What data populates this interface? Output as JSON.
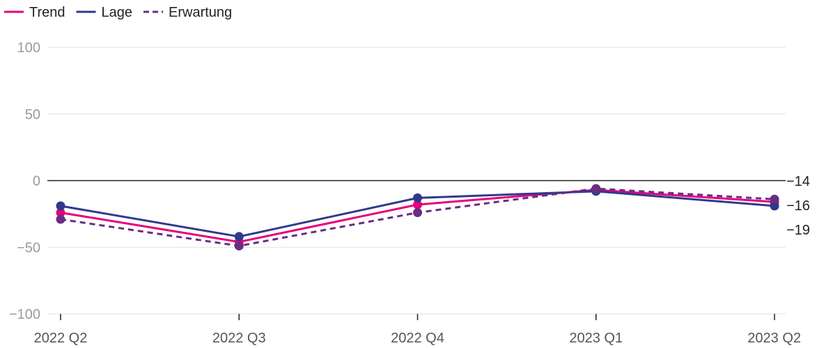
{
  "chart_data": {
    "type": "line",
    "categories": [
      "2022 Q2",
      "2022 Q3",
      "2022 Q4",
      "2023 Q1",
      "2023 Q2"
    ],
    "series": [
      {
        "name": "Trend",
        "values": [
          -24,
          -46,
          -18,
          -7,
          -16
        ],
        "color": "#e5007d",
        "dash": "solid"
      },
      {
        "name": "Lage",
        "values": [
          -19,
          -42,
          -13,
          -8,
          -19
        ],
        "color": "#2e3a8c",
        "dash": "solid"
      },
      {
        "name": "Erwartung",
        "values": [
          -29,
          -49,
          -24,
          -6,
          -14
        ],
        "color": "#6b2c82",
        "dash": "dashed"
      }
    ],
    "ylim": [
      -100,
      100
    ],
    "yticks": [
      100,
      50,
      0,
      -50,
      -100
    ],
    "ytick_labels": [
      "100",
      "50",
      "0",
      "−50",
      "−100"
    ],
    "end_labels": [
      "−14",
      "−16",
      "−19"
    ],
    "zero_line": true,
    "grid": true,
    "legend_position": "top-left",
    "title": "",
    "xlabel": "",
    "ylabel": ""
  }
}
